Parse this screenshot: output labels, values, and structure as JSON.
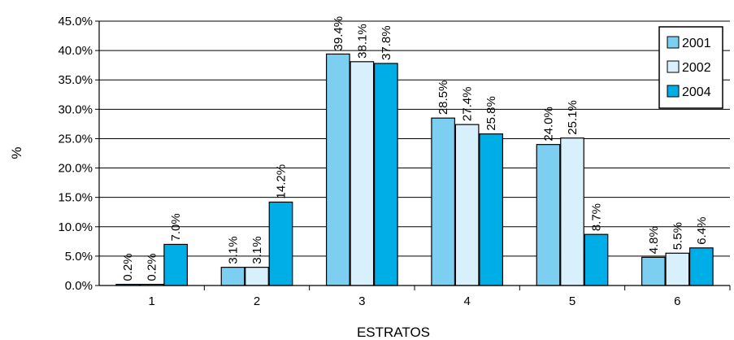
{
  "chart_data": {
    "type": "bar",
    "xlabel": "ESTRATOS",
    "ylabel": "%",
    "categories": [
      "1",
      "2",
      "3",
      "4",
      "5",
      "6"
    ],
    "ylim": [
      0,
      45
    ],
    "yticks": [
      "0.0%",
      "5.0%",
      "10.0%",
      "15.0%",
      "20.0%",
      "25.0%",
      "30.0%",
      "35.0%",
      "40.0%",
      "45.0%"
    ],
    "grid": true,
    "legend_position": "top-right",
    "series": [
      {
        "name": "2001",
        "color": "#7ccff0",
        "values": [
          0.2,
          3.1,
          39.4,
          28.5,
          24.0,
          4.8
        ],
        "labels": [
          "0.2%",
          "3.1%",
          "39.4%",
          "28.5%",
          "24.0%",
          "4.8%"
        ]
      },
      {
        "name": "2002",
        "color": "#d7f0fb",
        "values": [
          0.2,
          3.1,
          38.1,
          27.4,
          25.1,
          5.5
        ],
        "labels": [
          "0.2%",
          "3.1%",
          "38.1%",
          "27.4%",
          "25.1%",
          "5.5%"
        ]
      },
      {
        "name": "2004",
        "color": "#00aee7",
        "values": [
          7.0,
          14.2,
          37.8,
          25.8,
          8.7,
          6.4
        ],
        "labels": [
          "7.0%",
          "14.2%",
          "37.8%",
          "25.8%",
          "8.7%",
          "6.4%"
        ]
      }
    ]
  }
}
